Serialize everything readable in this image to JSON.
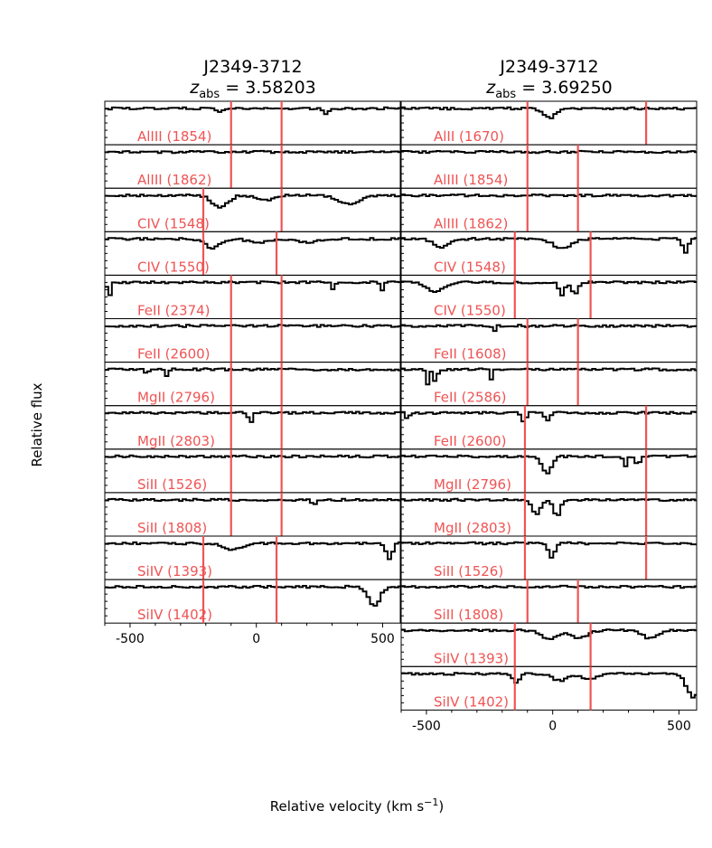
{
  "figure": {
    "xlabel": "Relative velocity (km s",
    "xlabel_sup": "−1",
    "xlabel_end": ")",
    "ylabel": "Relative flux"
  },
  "colors": {
    "line": "#000000",
    "marker": "#f05454",
    "label": "#f05454"
  },
  "chart_data": [
    {
      "type": "line",
      "title": "J2349-3712",
      "subtitle_prefix": "z",
      "subtitle_sub": "abs",
      "subtitle_value": " = 3.58203",
      "xlim": [
        -600,
        570
      ],
      "xticks": [
        -500,
        0,
        500
      ],
      "xtick_labels": [
        "-500",
        "0",
        "500"
      ],
      "panels": [
        {
          "label": "AlIII (1854)",
          "markers": [
            -100,
            100
          ],
          "absorptions": [
            {
              "v": -150,
              "d": 0.15,
              "w": 10
            },
            {
              "v": 270,
              "d": 0.2,
              "w": 10
            }
          ]
        },
        {
          "label": "AlIII (1862)",
          "markers": [
            -100,
            100
          ],
          "absorptions": []
        },
        {
          "label": "CIV (1548)",
          "markers": [
            -210,
            100
          ],
          "absorptions": [
            {
              "v": -150,
              "d": 0.45,
              "w": 30
            },
            {
              "v": 30,
              "d": 0.18,
              "w": 30
            },
            {
              "v": 360,
              "d": 0.3,
              "w": 45
            }
          ]
        },
        {
          "label": "CIV (1550)",
          "markers": [
            -210,
            80
          ],
          "absorptions": [
            {
              "v": -180,
              "d": 0.35,
              "w": 28
            },
            {
              "v": 0,
              "d": 0.15,
              "w": 35
            },
            {
              "v": 200,
              "d": 0.12,
              "w": 40
            }
          ]
        },
        {
          "label": "FeII (2374)",
          "markers": [
            -100,
            100
          ],
          "absorptions": [
            {
              "v": -590,
              "d": 0.6,
              "w": 6
            },
            {
              "v": 300,
              "d": 0.3,
              "w": 6
            },
            {
              "v": 490,
              "d": 0.35,
              "w": 6
            }
          ]
        },
        {
          "label": "FeII (2600)",
          "markers": [
            -100,
            100
          ],
          "absorptions": []
        },
        {
          "label": "MgII (2796)",
          "markers": [
            -100,
            100
          ],
          "absorptions": [
            {
              "v": -440,
              "d": 0.25,
              "w": 6
            },
            {
              "v": -360,
              "d": 0.3,
              "w": 6
            }
          ]
        },
        {
          "label": "MgII (2803)",
          "markers": [
            -100,
            100
          ],
          "absorptions": [
            {
              "v": -30,
              "d": 0.35,
              "w": 8
            }
          ]
        },
        {
          "label": "SiII (1526)",
          "markers": [
            -100,
            100
          ],
          "absorptions": []
        },
        {
          "label": "SiII (1808)",
          "markers": [
            -100,
            100
          ],
          "absorptions": [
            {
              "v": 220,
              "d": 0.25,
              "w": 6
            }
          ]
        },
        {
          "label": "SiIV (1393)",
          "markers": [
            -210,
            80
          ],
          "absorptions": [
            {
              "v": -100,
              "d": 0.22,
              "w": 35
            },
            {
              "v": 520,
              "d": 0.6,
              "w": 12
            }
          ]
        },
        {
          "label": "SiIV (1402)",
          "markers": [
            -210,
            80
          ],
          "absorptions": [
            {
              "v": 460,
              "d": 0.7,
              "w": 22
            }
          ]
        }
      ]
    },
    {
      "type": "line",
      "title": "J2349-3712",
      "subtitle_prefix": "z",
      "subtitle_sub": "abs",
      "subtitle_value": " = 3.69250",
      "xlim": [
        -600,
        570
      ],
      "xticks": [
        -500,
        0,
        500
      ],
      "xtick_labels": [
        "-500",
        "0",
        "500"
      ],
      "panels": [
        {
          "label": "AlII (1670)",
          "markers": [
            -100,
            370
          ],
          "absorptions": [
            {
              "v": -20,
              "d": 0.35,
              "w": 25
            }
          ]
        },
        {
          "label": "AlIII (1854)",
          "markers": [
            -100,
            100
          ],
          "absorptions": []
        },
        {
          "label": "AlIII (1862)",
          "markers": [
            -100,
            100
          ],
          "absorptions": []
        },
        {
          "label": "CIV (1548)",
          "markers": [
            -150,
            150
          ],
          "absorptions": [
            {
              "v": -450,
              "d": 0.3,
              "w": 30
            },
            {
              "v": 30,
              "d": 0.35,
              "w": 35
            },
            {
              "v": 520,
              "d": 0.55,
              "w": 10
            }
          ]
        },
        {
          "label": "CIV (1550)",
          "markers": [
            -150,
            150
          ],
          "absorptions": [
            {
              "v": -470,
              "d": 0.35,
              "w": 30
            },
            {
              "v": 30,
              "d": 0.5,
              "w": 10
            },
            {
              "v": 80,
              "d": 0.4,
              "w": 14
            }
          ]
        },
        {
          "label": "FeII (1608)",
          "markers": [
            -100,
            100
          ],
          "absorptions": [
            {
              "v": -240,
              "d": 0.3,
              "w": 5
            }
          ]
        },
        {
          "label": "FeII (2586)",
          "markers": [
            -100,
            100
          ],
          "absorptions": [
            {
              "v": -500,
              "d": 0.6,
              "w": 6
            },
            {
              "v": -470,
              "d": 0.5,
              "w": 6
            },
            {
              "v": -250,
              "d": 0.35,
              "w": 6
            }
          ]
        },
        {
          "label": "FeII (2600)",
          "markers": [
            -110,
            370
          ],
          "absorptions": [
            {
              "v": -580,
              "d": 0.45,
              "w": 5
            },
            {
              "v": -120,
              "d": 0.4,
              "w": 8
            },
            {
              "v": -30,
              "d": 0.3,
              "w": 10
            }
          ]
        },
        {
          "label": "MgII (2796)",
          "markers": [
            -110,
            370
          ],
          "absorptions": [
            {
              "v": -30,
              "d": 0.65,
              "w": 18
            },
            {
              "v": 280,
              "d": 0.35,
              "w": 8
            },
            {
              "v": 330,
              "d": 0.3,
              "w": 8
            }
          ]
        },
        {
          "label": "MgII (2803)",
          "markers": [
            -110,
            370
          ],
          "absorptions": [
            {
              "v": -70,
              "d": 0.5,
              "w": 18
            },
            {
              "v": 10,
              "d": 0.6,
              "w": 14
            }
          ]
        },
        {
          "label": "SiII (1526)",
          "markers": [
            -110,
            370
          ],
          "absorptions": [
            {
              "v": -10,
              "d": 0.5,
              "w": 14
            }
          ]
        },
        {
          "label": "SiII (1808)",
          "markers": [
            -100,
            100
          ],
          "absorptions": []
        },
        {
          "label": "SiIV (1393)",
          "markers": [
            -150,
            150
          ],
          "absorptions": [
            {
              "v": -20,
              "d": 0.35,
              "w": 30
            },
            {
              "v": 100,
              "d": 0.3,
              "w": 30
            },
            {
              "v": 380,
              "d": 0.3,
              "w": 30
            }
          ]
        },
        {
          "label": "SiIV (1402)",
          "markers": [
            -150,
            150
          ],
          "absorptions": [
            {
              "v": -150,
              "d": 0.3,
              "w": 14
            },
            {
              "v": 20,
              "d": 0.25,
              "w": 30
            },
            {
              "v": 140,
              "d": 0.2,
              "w": 30
            },
            {
              "v": 550,
              "d": 0.85,
              "w": 25
            }
          ]
        }
      ]
    }
  ]
}
